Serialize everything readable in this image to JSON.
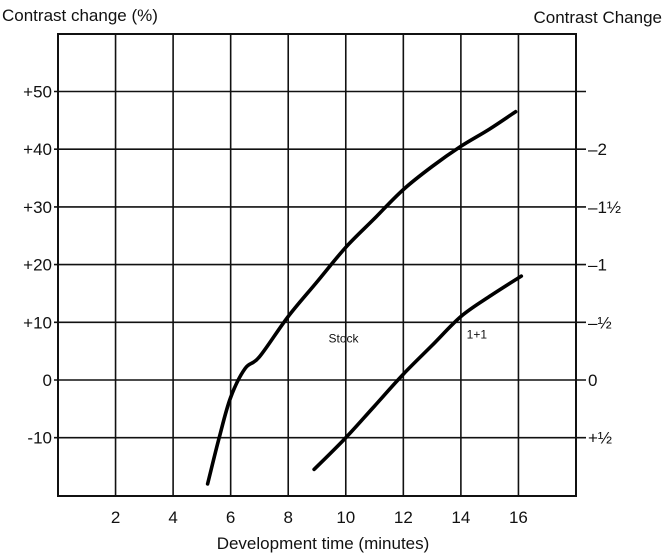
{
  "chart_data": {
    "type": "line",
    "xlabel": "Development time (minutes)",
    "ylabel": "Contrast change (%)",
    "ylabel_right": "Contrast Change",
    "xlim": [
      0,
      18
    ],
    "ylim": [
      -20,
      60
    ],
    "x_ticks": [
      2,
      4,
      6,
      8,
      10,
      12,
      14,
      16
    ],
    "x_tick_labels": [
      "2",
      "4",
      "6",
      "8",
      "10",
      "12",
      "14",
      "16"
    ],
    "y_ticks": [
      -10,
      0,
      10,
      20,
      30,
      40,
      50
    ],
    "y_tick_labels": [
      "-10",
      "0",
      "+10",
      "+20",
      "+30",
      "+40",
      "+50"
    ],
    "y_right_ticks": [
      -10,
      0,
      10,
      20,
      30,
      40
    ],
    "y_right_tick_labels": [
      "+½",
      "0",
      "–½",
      "–1",
      "–1½",
      "–2"
    ],
    "grid": true,
    "series": [
      {
        "name": "Stock",
        "x": [
          5.2,
          5.6,
          6.0,
          6.5,
          7.0,
          8.0,
          9.0,
          10.0,
          11.0,
          12.0,
          13.0,
          14.0,
          15.0,
          15.9
        ],
        "y": [
          -18,
          -10,
          -3,
          2,
          4,
          11,
          17,
          23,
          28,
          33,
          37,
          40.5,
          43.5,
          46.5
        ]
      },
      {
        "name": "1+1",
        "x": [
          8.9,
          10.0,
          11.0,
          12.0,
          13.0,
          14.0,
          15.0,
          16.1
        ],
        "y": [
          -15.5,
          -10,
          -4.5,
          1,
          6,
          11,
          14.5,
          18
        ]
      }
    ],
    "annotations": [
      {
        "text": "Stock",
        "x": 9.4,
        "y": 6.5
      },
      {
        "text": "1+1",
        "x": 14.2,
        "y": 7.2
      }
    ]
  }
}
